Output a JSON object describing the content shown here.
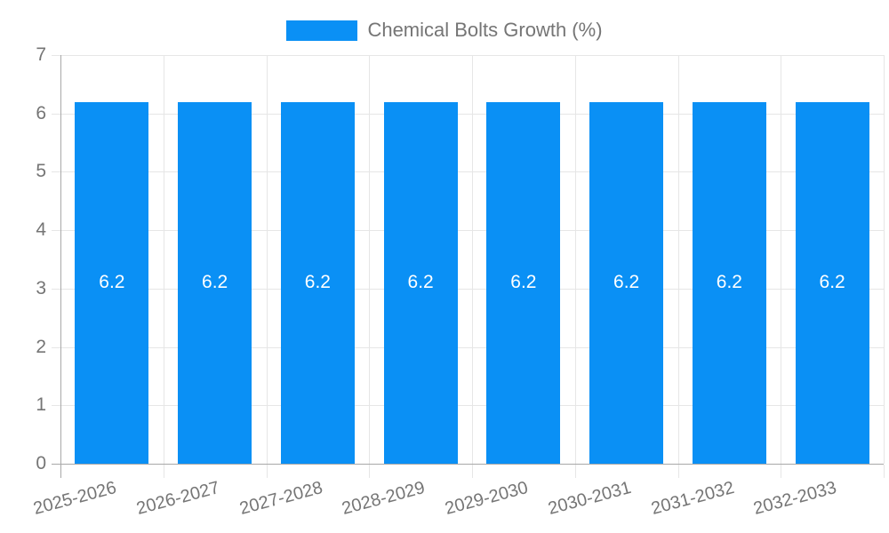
{
  "legend": {
    "series_label": "Chemical Bolts Growth (%)"
  },
  "colors": {
    "bar": "#0A90F5",
    "axis_text": "#757575",
    "grid_line": "#e6e6e6",
    "axis_line": "#a8a8a8",
    "bar_label": "#ffffff",
    "background": "#ffffff"
  },
  "chart_data": {
    "type": "bar",
    "title": "Chemical Bolts Growth (%)",
    "categories": [
      "2025-2026",
      "2026-2027",
      "2027-2028",
      "2028-2029",
      "2029-2030",
      "2030-2031",
      "2031-2032",
      "2032-2033"
    ],
    "values": [
      6.2,
      6.2,
      6.2,
      6.2,
      6.2,
      6.2,
      6.2,
      6.2
    ],
    "xlabel": "",
    "ylabel": "",
    "ylim": [
      0,
      7
    ],
    "yticks": [
      0,
      1,
      2,
      3,
      4,
      5,
      6,
      7
    ],
    "grid": true,
    "legend_position": "top",
    "bar_labels_shown": true,
    "x_tick_rotation_deg": -15
  }
}
